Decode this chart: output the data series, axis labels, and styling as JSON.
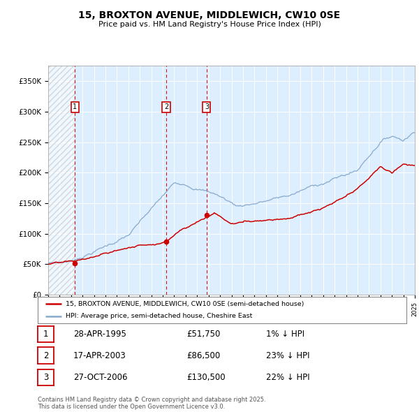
{
  "title": "15, BROXTON AVENUE, MIDDLEWICH, CW10 0SE",
  "subtitle": "Price paid vs. HM Land Registry's House Price Index (HPI)",
  "hatch_end_year": 1995.33,
  "sale_dates": [
    1995.33,
    2003.3,
    2006.83
  ],
  "sale_prices": [
    51750,
    86500,
    130500
  ],
  "sale_labels": [
    "1",
    "2",
    "3"
  ],
  "legend_line1": "15, BROXTON AVENUE, MIDDLEWICH, CW10 0SE (semi-detached house)",
  "legend_line2": "HPI: Average price, semi-detached house, Cheshire East",
  "table_rows": [
    [
      "1",
      "28-APR-1995",
      "£51,750",
      "1% ↓ HPI"
    ],
    [
      "2",
      "17-APR-2003",
      "£86,500",
      "23% ↓ HPI"
    ],
    [
      "3",
      "27-OCT-2006",
      "£130,500",
      "22% ↓ HPI"
    ]
  ],
  "footer": "Contains HM Land Registry data © Crown copyright and database right 2025.\nThis data is licensed under the Open Government Licence v3.0.",
  "xmin": 1993,
  "xmax": 2025,
  "ymin": 0,
  "ymax": 375000,
  "yticks": [
    0,
    50000,
    100000,
    150000,
    200000,
    250000,
    300000,
    350000
  ],
  "ytick_labels": [
    "£0",
    "£50K",
    "£100K",
    "£150K",
    "£200K",
    "£250K",
    "£300K",
    "£350K"
  ],
  "red_color": "#cc0000",
  "blue_color": "#88aacc",
  "bg_color": "#ddeeff",
  "fig_bg": "#ffffff"
}
